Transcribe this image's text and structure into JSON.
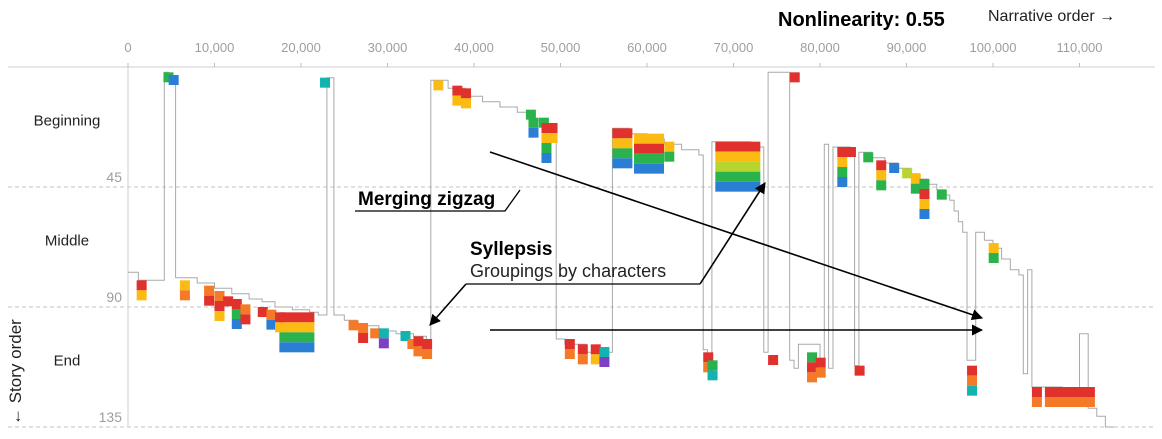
{
  "chart_data": {
    "type": "line",
    "title": "Nonlinearity: 0.55",
    "xlabel": "Narrative order →",
    "ylabel": "← Story order",
    "x_ticks": [
      0,
      10000,
      20000,
      30000,
      40000,
      50000,
      60000,
      70000,
      80000,
      90000,
      100000,
      110000
    ],
    "x_tick_labels": [
      "0",
      "10,000",
      "20,000",
      "30,000",
      "40,000",
      "50,000",
      "60,000",
      "70,000",
      "80,000",
      "90,000",
      "100,000",
      "110,000"
    ],
    "xlim": [
      0,
      118000
    ],
    "y_ticks": [
      45,
      90,
      135
    ],
    "y_tick_labels": [
      "45",
      "90",
      "135"
    ],
    "ylim": [
      0,
      135
    ],
    "y_axis_inverted": true,
    "grid": "horizontal-dashed",
    "sections": [
      {
        "label": "Beginning",
        "y": 20
      },
      {
        "label": "Middle",
        "y": 65
      },
      {
        "label": "End",
        "y": 110
      }
    ],
    "series": [
      {
        "points": [
          [
            0,
            77
          ],
          [
            1200,
            77
          ],
          [
            1200,
            80
          ],
          [
            4200,
            80
          ],
          [
            4200,
            2
          ],
          [
            4700,
            2
          ],
          [
            4700,
            5
          ],
          [
            5500,
            5
          ],
          [
            5500,
            79
          ],
          [
            8000,
            79
          ],
          [
            8000,
            81
          ],
          [
            10000,
            81
          ],
          [
            10000,
            83
          ],
          [
            12000,
            83
          ],
          [
            12000,
            85
          ],
          [
            14000,
            85
          ],
          [
            14000,
            87
          ],
          [
            15500,
            87
          ],
          [
            15500,
            88
          ],
          [
            17000,
            88
          ],
          [
            17000,
            90
          ],
          [
            19000,
            90
          ],
          [
            19000,
            91
          ],
          [
            21000,
            91
          ],
          [
            21000,
            92
          ],
          [
            22000,
            92
          ],
          [
            22000,
            93
          ],
          [
            23000,
            93
          ],
          [
            23000,
            4
          ],
          [
            23800,
            4
          ],
          [
            23800,
            93
          ],
          [
            25000,
            93
          ],
          [
            25000,
            95
          ],
          [
            26500,
            95
          ],
          [
            26500,
            97
          ],
          [
            29000,
            97
          ],
          [
            29000,
            99
          ],
          [
            31000,
            99
          ],
          [
            31000,
            100
          ],
          [
            33000,
            100
          ],
          [
            33000,
            101
          ],
          [
            34500,
            101
          ],
          [
            34500,
            105
          ],
          [
            35000,
            105
          ],
          [
            35000,
            5
          ],
          [
            37000,
            5
          ],
          [
            37000,
            8
          ],
          [
            39000,
            8
          ],
          [
            39000,
            11
          ],
          [
            41000,
            11
          ],
          [
            41000,
            13
          ],
          [
            43000,
            13
          ],
          [
            43000,
            15
          ],
          [
            45000,
            15
          ],
          [
            45000,
            17
          ],
          [
            46500,
            17
          ],
          [
            46500,
            20
          ],
          [
            48000,
            20
          ],
          [
            48000,
            23
          ],
          [
            48500,
            23
          ],
          [
            48500,
            25
          ],
          [
            49500,
            25
          ],
          [
            49500,
            102
          ],
          [
            50500,
            102
          ],
          [
            50500,
            104
          ],
          [
            53000,
            104
          ],
          [
            53000,
            107
          ],
          [
            56000,
            107
          ],
          [
            56000,
            23
          ],
          [
            58000,
            23
          ],
          [
            58000,
            25
          ],
          [
            60000,
            25
          ],
          [
            60000,
            27
          ],
          [
            62000,
            27
          ],
          [
            62000,
            29
          ],
          [
            64000,
            29
          ],
          [
            64000,
            31
          ],
          [
            66000,
            31
          ],
          [
            66000,
            33
          ],
          [
            66500,
            33
          ],
          [
            66500,
            106
          ],
          [
            67000,
            106
          ],
          [
            67000,
            110
          ],
          [
            67500,
            110
          ],
          [
            67500,
            28
          ],
          [
            72000,
            28
          ],
          [
            72000,
            30
          ],
          [
            73500,
            30
          ],
          [
            73500,
            107
          ],
          [
            74000,
            107
          ],
          [
            74000,
            2
          ],
          [
            76500,
            2
          ],
          [
            76500,
            110
          ],
          [
            77000,
            110
          ],
          [
            77000,
            113
          ],
          [
            77500,
            113
          ],
          [
            77500,
            104
          ],
          [
            80000,
            104
          ],
          [
            80000,
            110
          ],
          [
            80500,
            110
          ],
          [
            80500,
            29
          ],
          [
            81000,
            29
          ],
          [
            81000,
            113
          ],
          [
            81500,
            113
          ],
          [
            81500,
            30
          ],
          [
            83500,
            30
          ],
          [
            83500,
            32
          ],
          [
            84000,
            32
          ],
          [
            84000,
            112
          ],
          [
            84500,
            112
          ],
          [
            84500,
            32
          ],
          [
            86000,
            32
          ],
          [
            86000,
            34
          ],
          [
            87500,
            34
          ],
          [
            87500,
            36
          ],
          [
            89000,
            36
          ],
          [
            89000,
            38
          ],
          [
            90500,
            38
          ],
          [
            90500,
            40
          ],
          [
            91500,
            40
          ],
          [
            91500,
            42
          ],
          [
            92500,
            42
          ],
          [
            92500,
            44
          ],
          [
            93500,
            44
          ],
          [
            93500,
            46
          ],
          [
            94500,
            46
          ],
          [
            94500,
            48
          ],
          [
            95000,
            48
          ],
          [
            95000,
            50
          ],
          [
            95500,
            50
          ],
          [
            95500,
            54
          ],
          [
            96000,
            54
          ],
          [
            96000,
            58
          ],
          [
            96500,
            58
          ],
          [
            96500,
            62
          ],
          [
            97000,
            62
          ],
          [
            97000,
            110
          ],
          [
            98000,
            110
          ],
          [
            98000,
            62
          ],
          [
            99000,
            62
          ],
          [
            99000,
            65
          ],
          [
            100000,
            65
          ],
          [
            100000,
            68
          ],
          [
            101000,
            68
          ],
          [
            101000,
            72
          ],
          [
            102000,
            72
          ],
          [
            102000,
            76
          ],
          [
            103000,
            76
          ],
          [
            103000,
            78
          ],
          [
            103500,
            78
          ],
          [
            103500,
            115
          ],
          [
            104000,
            115
          ],
          [
            104000,
            76
          ],
          [
            104500,
            76
          ],
          [
            104500,
            120
          ],
          [
            108000,
            120
          ],
          [
            108000,
            124
          ],
          [
            109000,
            124
          ],
          [
            109000,
            126
          ],
          [
            110000,
            126
          ],
          [
            110000,
            100
          ],
          [
            111000,
            100
          ],
          [
            111000,
            128
          ],
          [
            112000,
            128
          ],
          [
            112000,
            131
          ],
          [
            113000,
            131
          ],
          [
            113000,
            135
          ],
          [
            114000,
            135
          ]
        ]
      }
    ],
    "character_blocks": [
      {
        "x": 1000,
        "y": 80,
        "colors": [
          "#e0312d",
          "#fbbb12"
        ]
      },
      {
        "x": 4100,
        "y": 2,
        "colors": [
          "#2ab24c"
        ]
      },
      {
        "x": 4700,
        "y": 3,
        "colors": [
          "#2a7fd4"
        ]
      },
      {
        "x": 6000,
        "y": 80,
        "colors": [
          "#fbbb12",
          "#f47a27"
        ]
      },
      {
        "x": 8800,
        "y": 82,
        "colors": [
          "#f47a27",
          "#e0312d"
        ]
      },
      {
        "x": 10000,
        "y": 84,
        "colors": [
          "#f47a27",
          "#e0312d",
          "#fbbb12"
        ]
      },
      {
        "x": 11000,
        "y": 86,
        "colors": [
          "#e0312d"
        ]
      },
      {
        "x": 12000,
        "y": 87,
        "colors": [
          "#e0312d",
          "#2ab24c",
          "#2a7fd4"
        ]
      },
      {
        "x": 13000,
        "y": 89,
        "colors": [
          "#f47a27",
          "#e0312d"
        ]
      },
      {
        "x": 15000,
        "y": 90,
        "colors": [
          "#e0312d"
        ]
      },
      {
        "x": 16000,
        "y": 91,
        "colors": [
          "#f47a27",
          "#2a7fd4"
        ]
      },
      {
        "x": 17000,
        "y": 92,
        "colors": [
          "#e0312d",
          "#fbbb12"
        ]
      },
      {
        "x": 17500,
        "y": 92,
        "colors": [
          "#e0312d",
          "#fbbb12",
          "#2ab24c",
          "#2a7fd4"
        ],
        "wide": 3.5
      },
      {
        "x": 22200,
        "y": 4,
        "colors": [
          "#13b3b0"
        ]
      },
      {
        "x": 25500,
        "y": 95,
        "colors": [
          "#f47a27"
        ]
      },
      {
        "x": 26600,
        "y": 96,
        "colors": [
          "#f47a27",
          "#e0312d"
        ]
      },
      {
        "x": 28000,
        "y": 98,
        "colors": [
          "#f47a27"
        ]
      },
      {
        "x": 29000,
        "y": 98,
        "colors": [
          "#13b3b0",
          "#7e3fc2"
        ]
      },
      {
        "x": 31500,
        "y": 99,
        "colors": [
          "#13b3b0"
        ]
      },
      {
        "x": 32300,
        "y": 102,
        "colors": [
          "#f47a27"
        ]
      },
      {
        "x": 33000,
        "y": 101,
        "colors": [
          "#e0312d",
          "#f47a27"
        ]
      },
      {
        "x": 34000,
        "y": 102,
        "colors": [
          "#e0312d",
          "#f47a27"
        ]
      },
      {
        "x": 35300,
        "y": 5,
        "colors": [
          "#fbbb12"
        ]
      },
      {
        "x": 37500,
        "y": 7,
        "colors": [
          "#e0312d",
          "#fbbb12"
        ]
      },
      {
        "x": 38500,
        "y": 8,
        "colors": [
          "#e0312d",
          "#fbbb12"
        ]
      },
      {
        "x": 46000,
        "y": 16,
        "colors": [
          "#2ab24c"
        ]
      },
      {
        "x": 46300,
        "y": 19,
        "colors": [
          "#2ab24c",
          "#2a7fd4"
        ]
      },
      {
        "x": 47500,
        "y": 19,
        "colors": [
          "#2ab24c"
        ]
      },
      {
        "x": 47800,
        "y": 21,
        "colors": [
          "#e0312d",
          "#fbbb12",
          "#2ab24c",
          "#2a7fd4"
        ]
      },
      {
        "x": 48500,
        "y": 21,
        "colors": [
          "#e0312d",
          "#fbbb12"
        ]
      },
      {
        "x": 50500,
        "y": 102,
        "colors": [
          "#e0312d",
          "#f47a27"
        ]
      },
      {
        "x": 52000,
        "y": 104,
        "colors": [
          "#e0312d",
          "#f47a27"
        ]
      },
      {
        "x": 53500,
        "y": 104,
        "colors": [
          "#e0312d",
          "#fbbb12"
        ]
      },
      {
        "x": 54500,
        "y": 105,
        "colors": [
          "#13b3b0",
          "#7e3fc2"
        ]
      },
      {
        "x": 56000,
        "y": 23,
        "colors": [
          "#e0312d",
          "#fbbb12",
          "#2ab24c",
          "#2a7fd4"
        ],
        "wide": 2
      },
      {
        "x": 58500,
        "y": 25,
        "colors": [
          "#fbbb12",
          "#e0312d",
          "#2ab24c",
          "#2a7fd4"
        ],
        "wide": 3
      },
      {
        "x": 62000,
        "y": 28,
        "colors": [
          "#fbbb12",
          "#2ab24c"
        ]
      },
      {
        "x": 66500,
        "y": 107,
        "colors": [
          "#e0312d",
          "#f47a27"
        ]
      },
      {
        "x": 67000,
        "y": 110,
        "colors": [
          "#2ab24c",
          "#13b3b0"
        ]
      },
      {
        "x": 67900,
        "y": 28,
        "colors": [
          "#e0312d",
          "#fbbb12",
          "#b7d52f",
          "#2ab24c",
          "#2a7fd4"
        ],
        "wide": 4.5
      },
      {
        "x": 74000,
        "y": 108,
        "colors": [
          "#e0312d"
        ]
      },
      {
        "x": 76500,
        "y": 2,
        "colors": [
          "#e0312d"
        ]
      },
      {
        "x": 78500,
        "y": 107,
        "colors": [
          "#2ab24c",
          "#e0312d",
          "#f47a27"
        ]
      },
      {
        "x": 79500,
        "y": 109,
        "colors": [
          "#e0312d",
          "#f47a27"
        ]
      },
      {
        "x": 82000,
        "y": 30,
        "colors": [
          "#e0312d",
          "#fbbb12",
          "#2ab24c",
          "#2a7fd4"
        ]
      },
      {
        "x": 83000,
        "y": 30,
        "colors": [
          "#e0312d"
        ]
      },
      {
        "x": 84000,
        "y": 112,
        "colors": [
          "#e0312d"
        ]
      },
      {
        "x": 85000,
        "y": 32,
        "colors": [
          "#2ab24c"
        ]
      },
      {
        "x": 86500,
        "y": 35,
        "colors": [
          "#e0312d",
          "#fbbb12",
          "#2ab24c"
        ]
      },
      {
        "x": 88000,
        "y": 36,
        "colors": [
          "#2a7fd4"
        ]
      },
      {
        "x": 89500,
        "y": 38,
        "colors": [
          "#b7d52f"
        ]
      },
      {
        "x": 90500,
        "y": 40,
        "colors": [
          "#fbbb12",
          "#2ab24c"
        ]
      },
      {
        "x": 91500,
        "y": 42,
        "colors": [
          "#2ab24c",
          "#e0312d",
          "#fbbb12",
          "#2a7fd4"
        ]
      },
      {
        "x": 93500,
        "y": 46,
        "colors": [
          "#2ab24c"
        ]
      },
      {
        "x": 97000,
        "y": 112,
        "colors": [
          "#e0312d",
          "#f47a27",
          "#13b3b0"
        ]
      },
      {
        "x": 99500,
        "y": 66,
        "colors": [
          "#fbbb12",
          "#2ab24c"
        ]
      },
      {
        "x": 104500,
        "y": 120,
        "colors": [
          "#e0312d",
          "#f47a27"
        ]
      },
      {
        "x": 106000,
        "y": 120,
        "colors": [
          "#e0312d",
          "#f47a27"
        ],
        "wide": 5
      }
    ],
    "annotations": [
      {
        "text": "Merging zigzag",
        "bold": true
      },
      {
        "text": "Syllepsis",
        "bold": true
      },
      {
        "text": "Groupings by characters",
        "bold": false
      }
    ]
  }
}
